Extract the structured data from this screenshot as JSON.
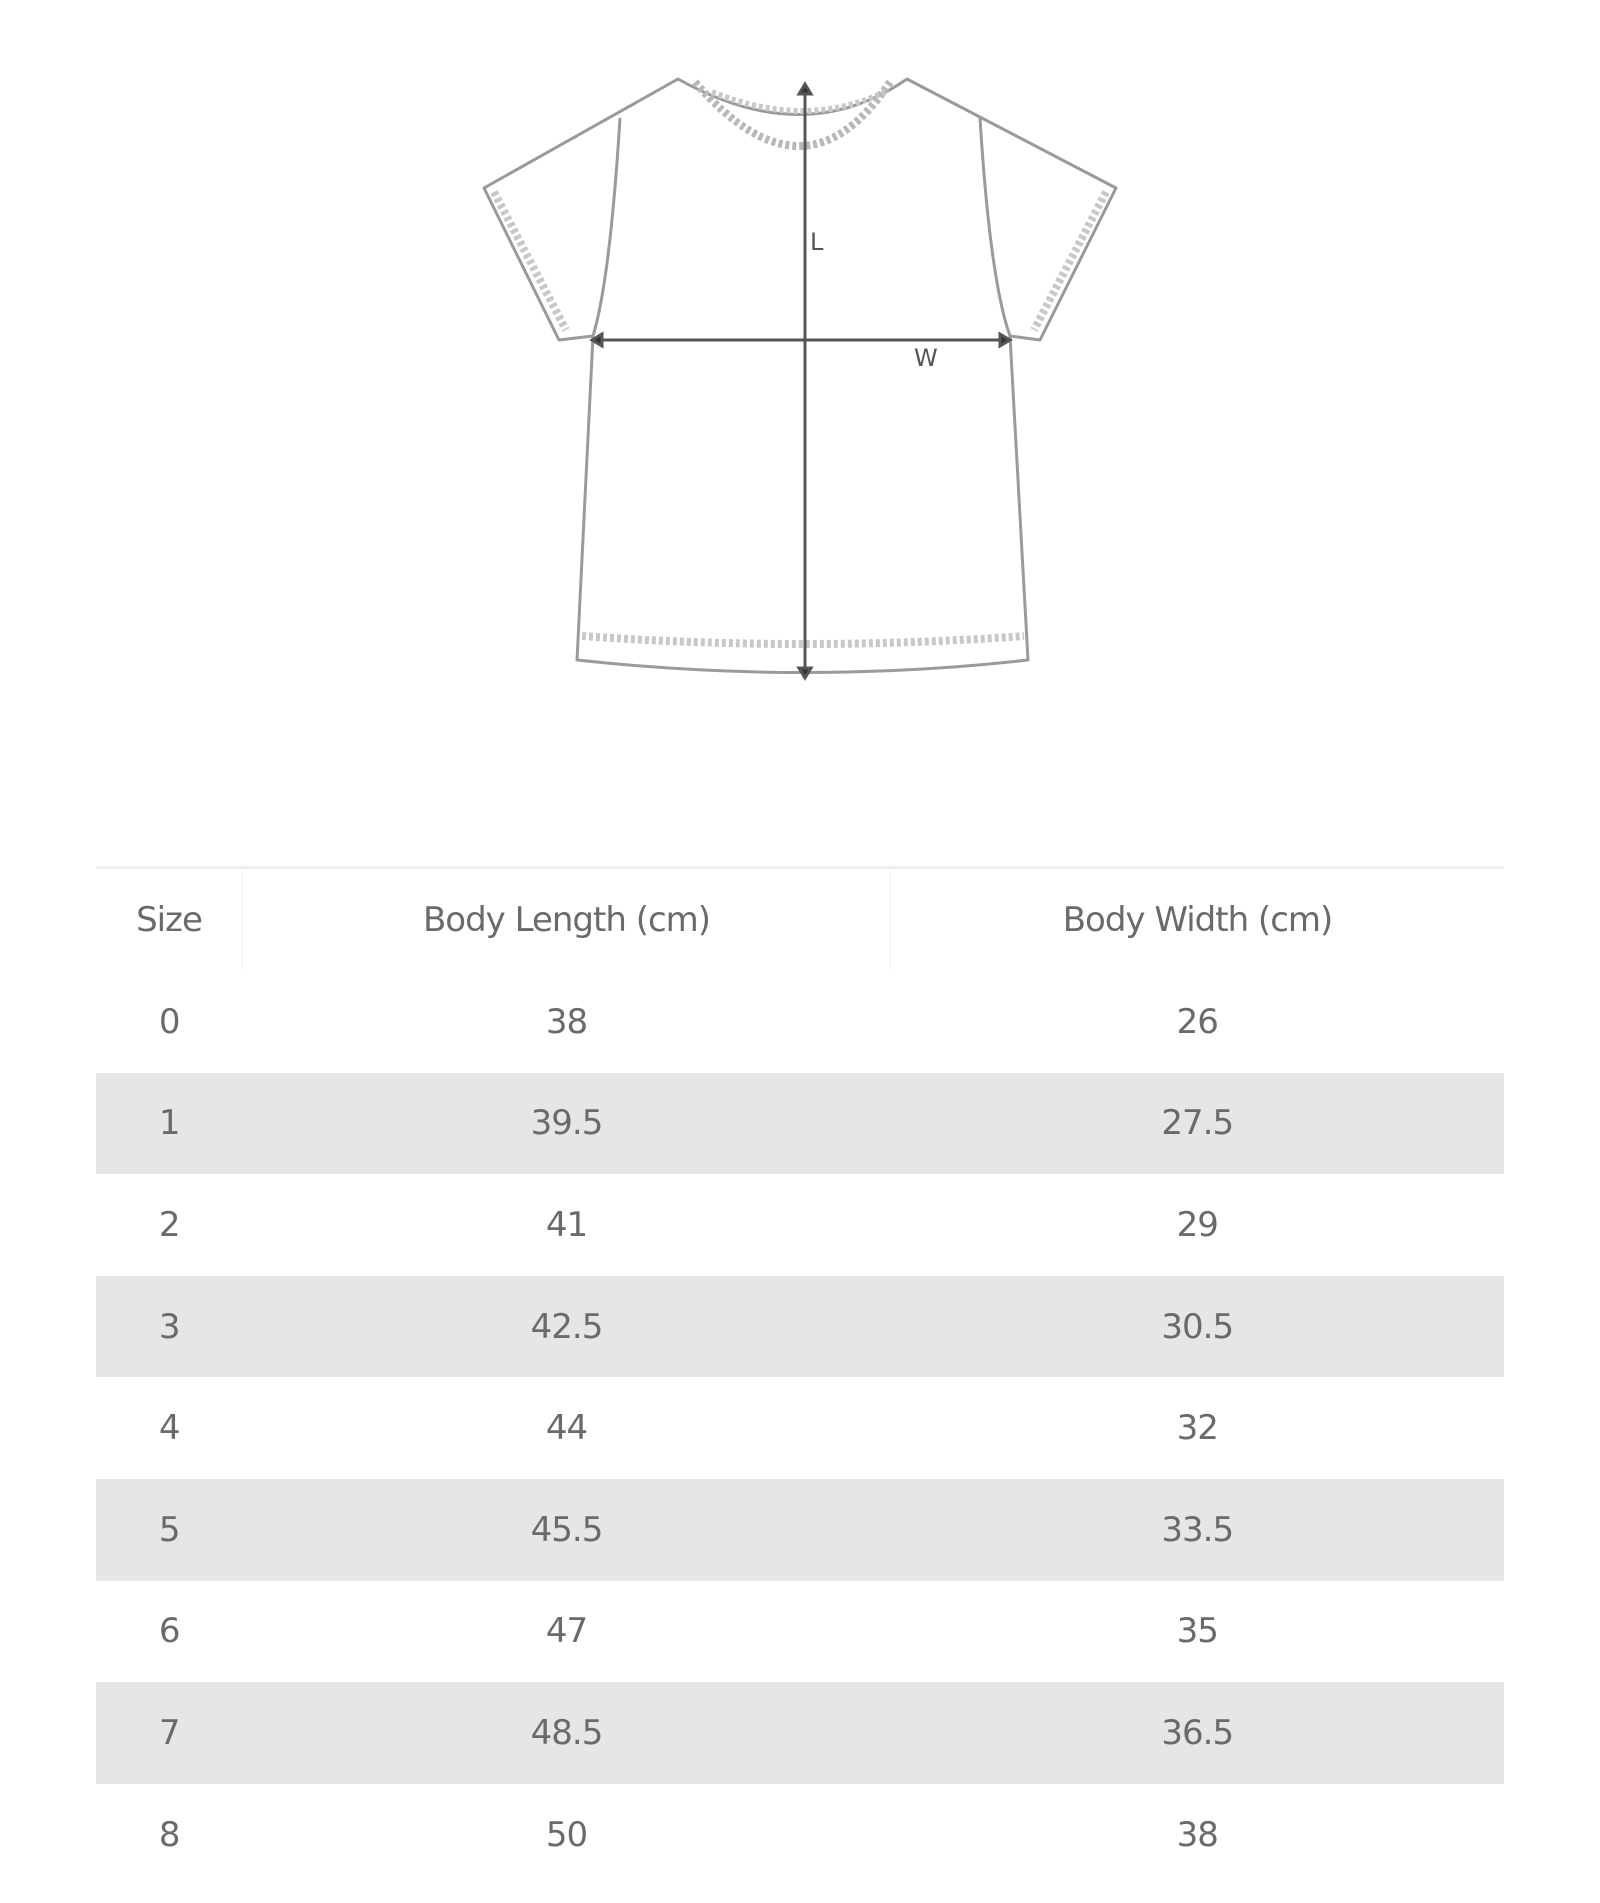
{
  "diagram": {
    "length_label": "L",
    "width_label": "W"
  },
  "table": {
    "headers": [
      "Size",
      "Body Length (cm)",
      "Body Width (cm)"
    ],
    "rows": [
      [
        "0",
        "38",
        "26"
      ],
      [
        "1",
        "39.5",
        "27.5"
      ],
      [
        "2",
        "41",
        "29"
      ],
      [
        "3",
        "42.5",
        "30.5"
      ],
      [
        "4",
        "44",
        "32"
      ],
      [
        "5",
        "45.5",
        "33.5"
      ],
      [
        "6",
        "47",
        "35"
      ],
      [
        "7",
        "48.5",
        "36.5"
      ],
      [
        "8",
        "50",
        "38"
      ]
    ],
    "stripe_color": "#e6e6e6"
  }
}
